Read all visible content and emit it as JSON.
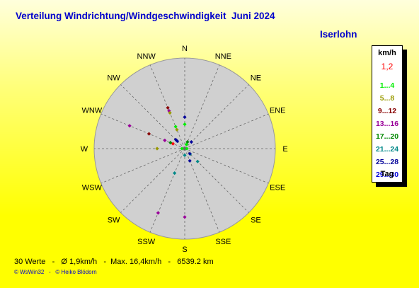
{
  "header": {
    "title": "Verteilung Windrichtung/Windgeschwindigkeit  Juni 2024",
    "location": "Iserlohn"
  },
  "legend": {
    "header": "km/h",
    "value": "1,2",
    "items": [
      {
        "label": "1...4",
        "color": "#00ee00"
      },
      {
        "label": "5...8",
        "color": "#999900"
      },
      {
        "label": "9...12",
        "color": "#880000"
      },
      {
        "label": "13...16",
        "color": "#990099"
      },
      {
        "label": "17...20",
        "color": "#008800"
      },
      {
        "label": "21...24",
        "color": "#008888"
      },
      {
        "label": "25...28",
        "color": "#000099"
      },
      {
        "label": "29...30",
        "color": "#0000dd"
      }
    ],
    "tag": "Tag"
  },
  "footer": {
    "stats": "30 Werte   -   Ø 1,9km/h   -  Max. 16,4km/h   -   6539.2 km",
    "copyright": "© WsWin32   -   © Heiko Blödorn"
  },
  "chart_data": {
    "type": "scatter",
    "directions": [
      "N",
      "NNE",
      "NE",
      "ENE",
      "E",
      "ESE",
      "SE",
      "SSE",
      "S",
      "SSW",
      "SW",
      "WSW",
      "W",
      "WNW",
      "NW",
      "NNW"
    ],
    "grid": true,
    "points": [
      {
        "dir": "NNW",
        "speed": 8.0,
        "color": "#880000"
      },
      {
        "dir": "NNW",
        "speed": 7.4,
        "color": "#990099"
      },
      {
        "dir": "NNW",
        "speed": 7.0,
        "color": "#999900"
      },
      {
        "dir": "N",
        "speed": 5.7,
        "color": "#000099"
      },
      {
        "dir": "N",
        "speed": 4.4,
        "color": "#00ee00"
      },
      {
        "dir": "NNW",
        "speed": 4.3,
        "color": "#00ee00"
      },
      {
        "dir": "NNW",
        "speed": 3.7,
        "color": "#999900"
      },
      {
        "dir": "WNW",
        "speed": 10.8,
        "color": "#990099"
      },
      {
        "dir": "WNW",
        "speed": 7.0,
        "color": "#880000"
      },
      {
        "dir": "NW",
        "speed": 2.3,
        "color": "#000099"
      },
      {
        "dir": "WNW",
        "speed": 3.9,
        "color": "#990099"
      },
      {
        "dir": "NE",
        "speed": 1.7,
        "color": "#000099"
      },
      {
        "dir": "NNE",
        "speed": 1.3,
        "color": "#008800"
      },
      {
        "dir": "WNW",
        "speed": 2.3,
        "color": "#ff0000"
      },
      {
        "dir": "NW",
        "speed": 1.9,
        "color": "#000099"
      },
      {
        "dir": "WNW",
        "speed": 2.8,
        "color": "#008800"
      },
      {
        "dir": "W",
        "speed": 5.0,
        "color": "#999900"
      },
      {
        "dir": "SE",
        "speed": 1.4,
        "color": "#008888"
      },
      {
        "dir": "SE",
        "speed": 1.3,
        "color": "#000099"
      },
      {
        "dir": "SSE",
        "speed": 2.4,
        "color": "#000099"
      },
      {
        "dir": "SE",
        "speed": 3.3,
        "color": "#008888"
      },
      {
        "dir": "S",
        "speed": 1.2,
        "color": "#008888"
      },
      {
        "dir": "SSW",
        "speed": 4.8,
        "color": "#008888"
      },
      {
        "dir": "SSW",
        "speed": 12.6,
        "color": "#990099"
      },
      {
        "dir": "S",
        "speed": 12.4,
        "color": "#990099"
      },
      {
        "dir": "NNE",
        "speed": 0.8,
        "color": "#00ee00"
      },
      {
        "dir": "W",
        "speed": 0.5,
        "color": "#00ee00"
      },
      {
        "dir": "E",
        "speed": 0.4,
        "color": "#00ee00"
      }
    ],
    "max_speed": 16.4
  }
}
